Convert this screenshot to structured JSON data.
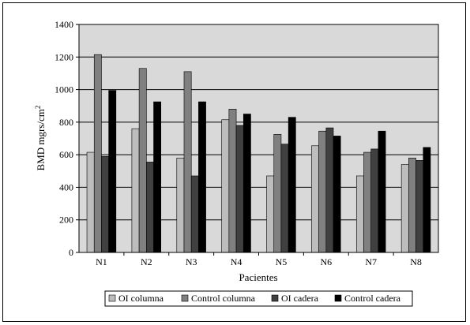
{
  "chart_data": {
    "type": "bar",
    "title": "",
    "xlabel": "Pacientes",
    "ylabel_main": "BMD mgrs/cm",
    "ylabel_sup": "2",
    "ylim": [
      0,
      1400
    ],
    "yticks": [
      "0",
      "200",
      "400",
      "600",
      "800",
      "1000",
      "1200",
      "1400"
    ],
    "grid": true,
    "legend_position": "bottom",
    "categories": [
      "N1",
      "N2",
      "N3",
      "N4",
      "N5",
      "N6",
      "N7",
      "N8"
    ],
    "series": [
      {
        "name": "OI columna",
        "color": "#bdbdbd",
        "values": [
          615,
          760,
          580,
          815,
          470,
          655,
          470,
          540
        ]
      },
      {
        "name": "Control columna",
        "color": "#808080",
        "values": [
          1215,
          1130,
          1110,
          880,
          725,
          745,
          615,
          580
        ]
      },
      {
        "name": "OI cadera",
        "color": "#404040",
        "values": [
          590,
          555,
          470,
          780,
          665,
          765,
          635,
          565
        ]
      },
      {
        "name": "Control cadera",
        "color": "#000000",
        "values": [
          995,
          925,
          925,
          850,
          830,
          715,
          745,
          645
        ]
      }
    ],
    "plot_background": "#d9d9d9"
  }
}
